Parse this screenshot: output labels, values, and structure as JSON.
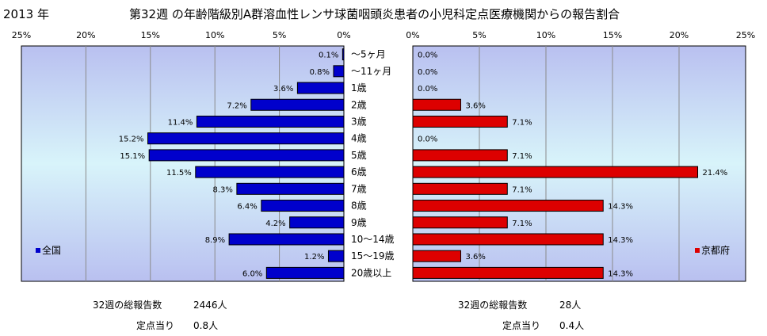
{
  "header": {
    "year": "2013 年",
    "title": "第32週 の年齢階級別A群溶血性レンサ球菌咽頭炎患者の小児科定点医療機関からの報告割合"
  },
  "chart_data": {
    "type": "bar",
    "orientation": "horizontal",
    "categories": [
      "～5ヶ月",
      "～11ヶ月",
      "1歳",
      "2歳",
      "3歳",
      "4歳",
      "5歳",
      "6歳",
      "7歳",
      "8歳",
      "9歳",
      "10～14歳",
      "15～19歳",
      "20歳以上"
    ],
    "axis_ticks": [
      "0%",
      "5%",
      "10%",
      "15%",
      "20%",
      "25%"
    ],
    "xlim": [
      0,
      25
    ],
    "grid": true,
    "series": [
      {
        "name": "全国",
        "panel": "left",
        "color": "#0000cc",
        "legend_position": "bottom-left",
        "values": [
          0.1,
          0.8,
          3.6,
          7.2,
          11.4,
          15.2,
          15.1,
          11.5,
          8.3,
          6.4,
          4.2,
          8.9,
          1.2,
          6.0
        ],
        "labels": [
          "0.1%",
          "0.8%",
          "3.6%",
          "7.2%",
          "11.4%",
          "15.2%",
          "15.1%",
          "11.5%",
          "8.3%",
          "6.4%",
          "4.2%",
          "8.9%",
          "1.2%",
          "6.0%"
        ]
      },
      {
        "name": "京都府",
        "panel": "right",
        "color": "#dd0000",
        "legend_position": "bottom-right",
        "values": [
          0.0,
          0.0,
          0.0,
          3.6,
          7.1,
          0.0,
          7.1,
          21.4,
          7.1,
          14.3,
          7.1,
          14.3,
          3.6,
          14.3
        ],
        "labels": [
          "0.0%",
          "0.0%",
          "0.0%",
          "3.6%",
          "7.1%",
          "0.0%",
          "7.1%",
          "21.4%",
          "7.1%",
          "14.3%",
          "7.1%",
          "14.3%",
          "3.6%",
          "14.3%"
        ]
      }
    ]
  },
  "stats": {
    "national": {
      "total_label": "32週の総報告数",
      "total_value": "2446人",
      "per_site_label": "定点当り",
      "per_site_value": "0.8人"
    },
    "kyoto": {
      "total_label": "32週の総報告数",
      "total_value": "28人",
      "per_site_label": "定点当り",
      "per_site_value": "0.4人"
    }
  }
}
